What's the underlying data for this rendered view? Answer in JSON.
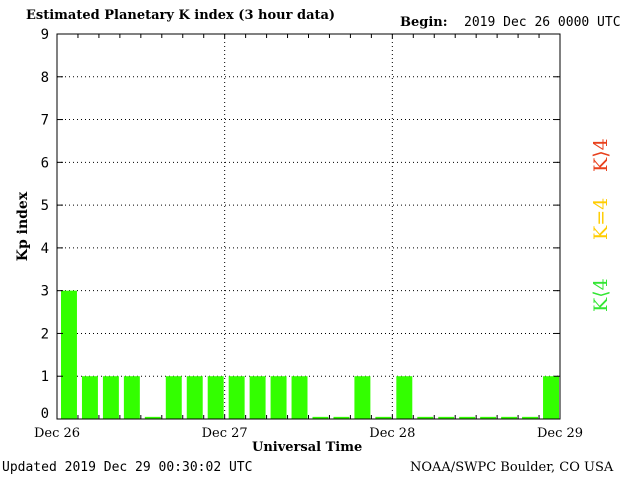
{
  "header": {
    "title": "Estimated Planetary K index (3 hour data)",
    "begin_label": "Begin:",
    "begin_value": "2019 Dec 26 0000 UTC"
  },
  "footer": {
    "updated": "Updated 2019 Dec 29 00:30:02 UTC",
    "credit": "NOAA/SWPC Boulder, CO USA"
  },
  "legend": {
    "above": "K⟩4",
    "equal": "K=4",
    "below": "K⟨4",
    "color_above": "#e8401c",
    "color_equal": "#ffcc00",
    "color_below": "#33e633"
  },
  "chart_data": {
    "type": "bar",
    "title": "Estimated Planetary K index (3 hour data)",
    "xlabel": "Universal Time",
    "ylabel": "Kp index",
    "ylim": [
      0,
      9
    ],
    "yticks": [
      0,
      1,
      2,
      3,
      4,
      5,
      6,
      7,
      8,
      9
    ],
    "xtick_labels": [
      "Dec 26",
      "Dec 27",
      "Dec 28",
      "Dec 29"
    ],
    "interval_hours": 3,
    "grid": true,
    "bar_color": "#33ff00",
    "values": [
      3,
      1,
      1,
      1,
      0.05,
      1,
      1,
      1,
      1,
      1,
      1,
      1,
      0.05,
      0.05,
      1,
      0.05,
      1,
      0.05,
      0.05,
      0.05,
      0.05,
      0.05,
      0.05,
      1
    ]
  }
}
